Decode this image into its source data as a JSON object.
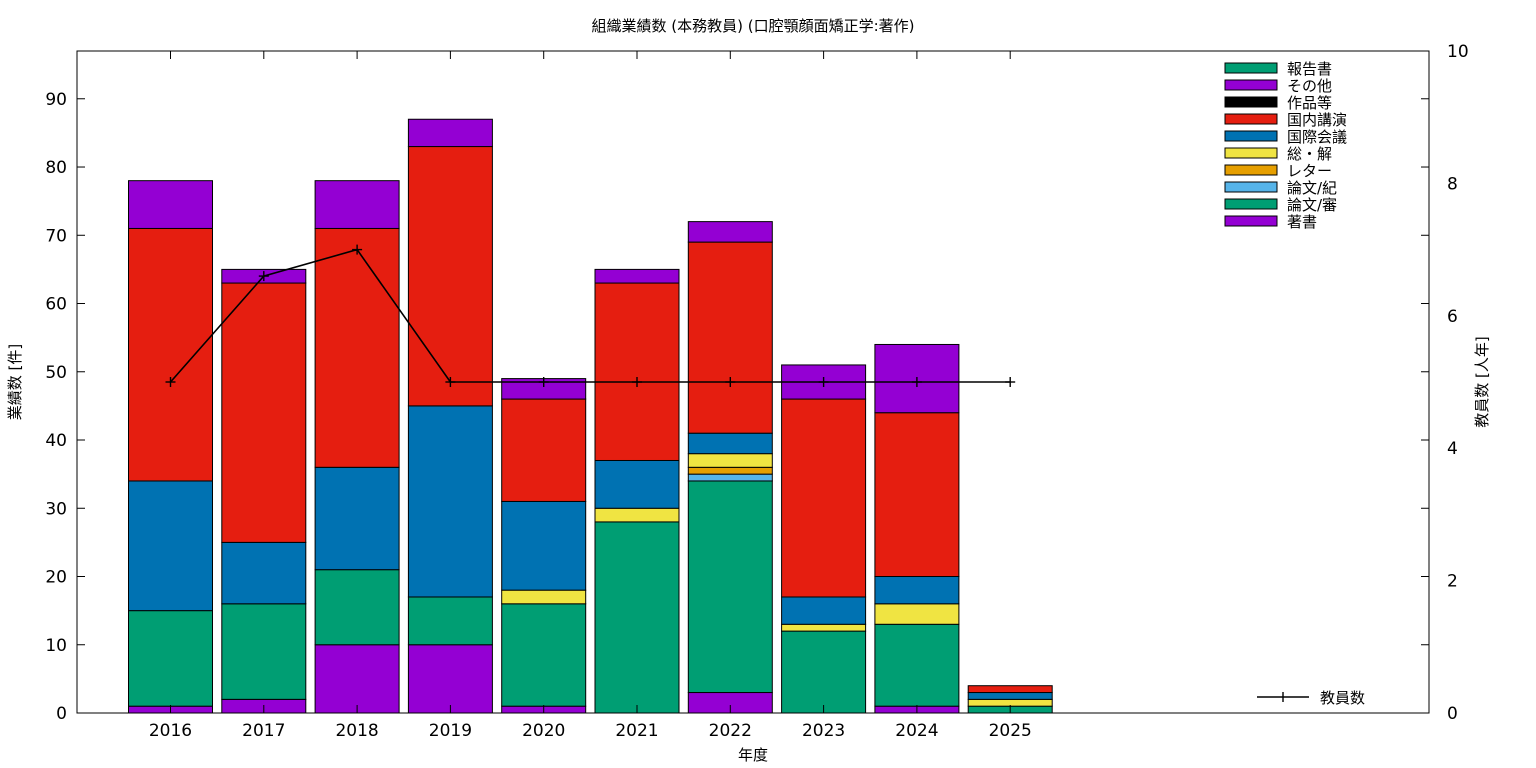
{
  "chart_data": {
    "type": "bar",
    "stacked": true,
    "title": "組織業績数 (本務教員) (口腔顎顔面矯正学:著作)",
    "xlabel": "年度",
    "ylabel": "業績数 [件]",
    "y2label": "教員数 [人年]",
    "ylim": [
      0,
      97
    ],
    "y_ticks": [
      0,
      10,
      20,
      30,
      40,
      50,
      60,
      70,
      80,
      90
    ],
    "y2lim": [
      0,
      10
    ],
    "y2_ticks": [
      0,
      2,
      4,
      6,
      8,
      10
    ],
    "categories": [
      "2016",
      "2017",
      "2018",
      "2019",
      "2020",
      "2021",
      "2022",
      "2023",
      "2024",
      "2025"
    ],
    "legend_position": "top-right",
    "series": [
      {
        "name": "著書",
        "color": "#9400d3",
        "values": [
          1,
          2,
          10,
          10,
          1,
          0,
          3,
          0,
          1,
          0
        ]
      },
      {
        "name": "論文/審",
        "color": "#009e73",
        "values": [
          14,
          14,
          11,
          7,
          15,
          28,
          31,
          12,
          12,
          1
        ]
      },
      {
        "name": "論文/紀",
        "color": "#56b4e9",
        "values": [
          0,
          0,
          0,
          0,
          0,
          0,
          1,
          0,
          0,
          0
        ]
      },
      {
        "name": "レター",
        "color": "#e69f00",
        "values": [
          0,
          0,
          0,
          0,
          0,
          0,
          1,
          0,
          0,
          0
        ]
      },
      {
        "name": "総・解",
        "color": "#f0e442",
        "values": [
          0,
          0,
          0,
          0,
          2,
          2,
          2,
          1,
          3,
          1
        ]
      },
      {
        "name": "国際会議",
        "color": "#0072b2",
        "values": [
          19,
          9,
          15,
          28,
          13,
          7,
          3,
          4,
          4,
          1
        ]
      },
      {
        "name": "国内講演",
        "color": "#e51e10",
        "values": [
          37,
          38,
          35,
          38,
          15,
          26,
          28,
          29,
          24,
          1
        ]
      },
      {
        "name": "作品等",
        "color": "#000000",
        "values": [
          0,
          0,
          0,
          0,
          0,
          0,
          0,
          0,
          0,
          0
        ]
      },
      {
        "name": "その他",
        "color": "#9400d3",
        "values": [
          7,
          2,
          7,
          4,
          3,
          2,
          3,
          5,
          10,
          0
        ]
      },
      {
        "name": "報告書",
        "color": "#009e73",
        "values": [
          0,
          0,
          0,
          0,
          0,
          0,
          0,
          0,
          0,
          0
        ]
      }
    ],
    "line_series": {
      "name": "教員数",
      "axis": "y2",
      "color": "#000000",
      "values": [
        5.0,
        6.6,
        7.0,
        5.0,
        5.0,
        5.0,
        5.0,
        5.0,
        5.0,
        5.0
      ]
    },
    "legend_order": [
      "報告書",
      "その他",
      "作品等",
      "国内講演",
      "国際会議",
      "総・解",
      "レター",
      "論文/紀",
      "論文/審",
      "著書"
    ]
  }
}
